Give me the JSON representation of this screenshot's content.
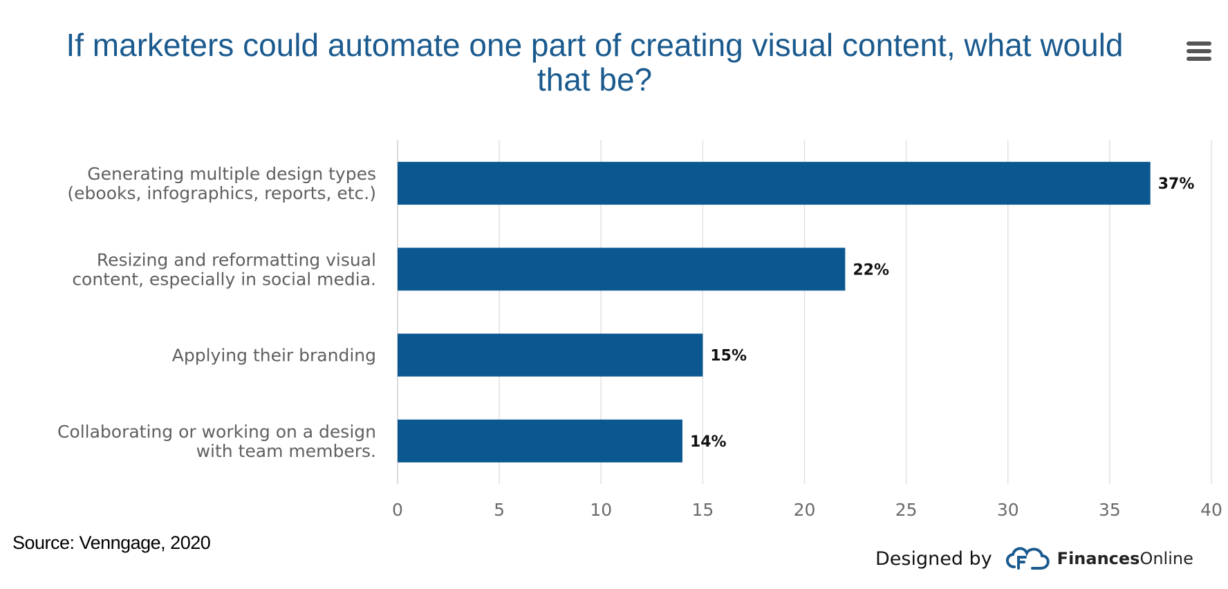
{
  "chart_data": {
    "type": "bar",
    "orientation": "horizontal",
    "title": "If marketers could automate one part of creating visual content, what would that be?",
    "categories": [
      [
        "Generating multiple design types",
        "(ebooks, infographics, reports, etc.)"
      ],
      [
        "Resizing and reformatting visual",
        "content, especially in social media."
      ],
      [
        "Applying their branding"
      ],
      [
        "Collaborating or working on a design",
        "with team members."
      ]
    ],
    "values": [
      37,
      22,
      15,
      14
    ],
    "data_labels": [
      "37%",
      "22%",
      "15%",
      "14%"
    ],
    "xlim": [
      0,
      40
    ],
    "xticks": [
      0,
      5,
      10,
      15,
      20,
      25,
      30,
      35,
      40
    ],
    "xlabel": "",
    "ylabel": "",
    "grid": true,
    "bar_color": "#0b5891",
    "grid_color": "#e1e1e1"
  },
  "source": "Source: Venngage, 2020",
  "credit": {
    "prefix": "Designed by",
    "brand_bold": "Finances",
    "brand_rest": "Online"
  },
  "menu": {
    "icon": "hamburger-menu-icon"
  },
  "colors": {
    "title": "#1a5a8e",
    "logo": "#1a5a8e"
  }
}
